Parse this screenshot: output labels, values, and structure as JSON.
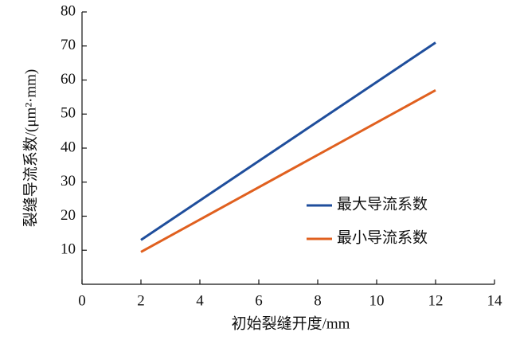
{
  "chart_data": {
    "type": "line",
    "xlabel": "初始裂缝开度/mm",
    "ylabel": "裂缝导流系数/(μm²·mm)",
    "x": [
      2,
      12
    ],
    "series": [
      {
        "name": "最大导流系数",
        "color": "#1f4e9c",
        "values": [
          13,
          71
        ]
      },
      {
        "name": "最小导流系数",
        "color": "#e0601f",
        "values": [
          9.5,
          57
        ]
      }
    ],
    "xlim": [
      0,
      14
    ],
    "xticks": [
      0,
      2,
      4,
      6,
      8,
      10,
      12,
      14
    ],
    "ylim": [
      0,
      80
    ],
    "yticks": [
      10,
      20,
      30,
      40,
      50,
      60,
      70,
      80
    ],
    "grid": false,
    "legend": "right"
  }
}
